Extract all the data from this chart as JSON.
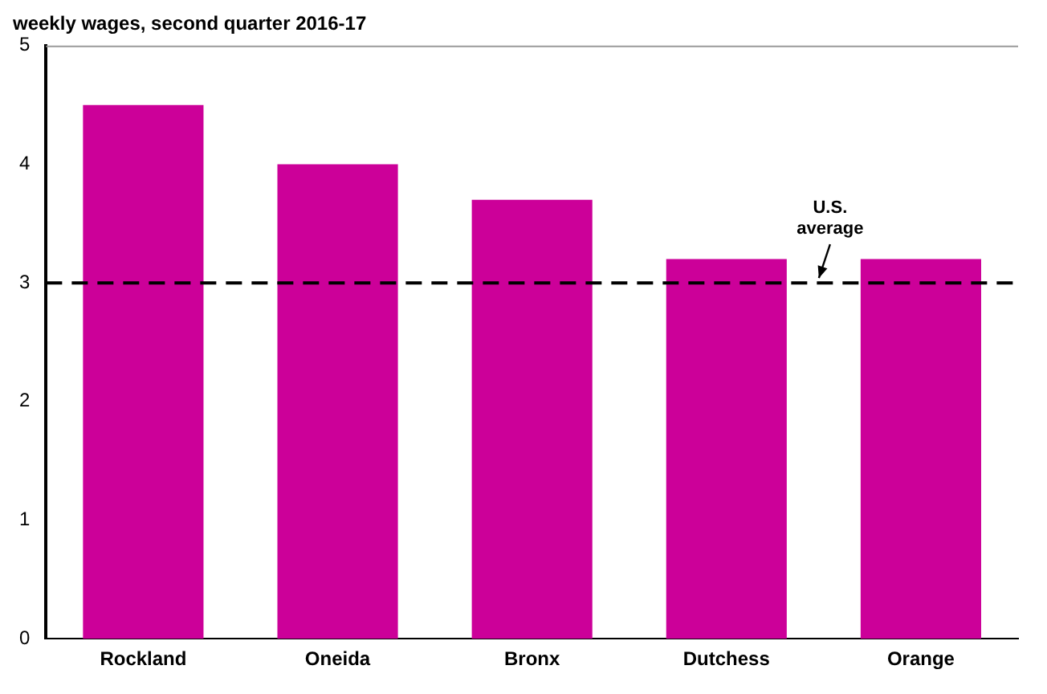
{
  "chart_data": {
    "type": "bar",
    "title": "weekly wages, second quarter 2016-17",
    "categories": [
      "Rockland",
      "Oneida",
      "Bronx",
      "Dutchess",
      "Orange"
    ],
    "values": [
      4.5,
      4.0,
      3.7,
      3.2,
      3.2
    ],
    "color": "#cc0099",
    "ylim": [
      0,
      5
    ],
    "yticks": [
      0,
      1,
      2,
      3,
      4,
      5
    ],
    "grid": false,
    "legend": false,
    "ref_lines": [
      {
        "axis": "y",
        "value": 3.0,
        "label": "U.S. average",
        "color": "#000000",
        "line_style": "dashed"
      }
    ]
  }
}
